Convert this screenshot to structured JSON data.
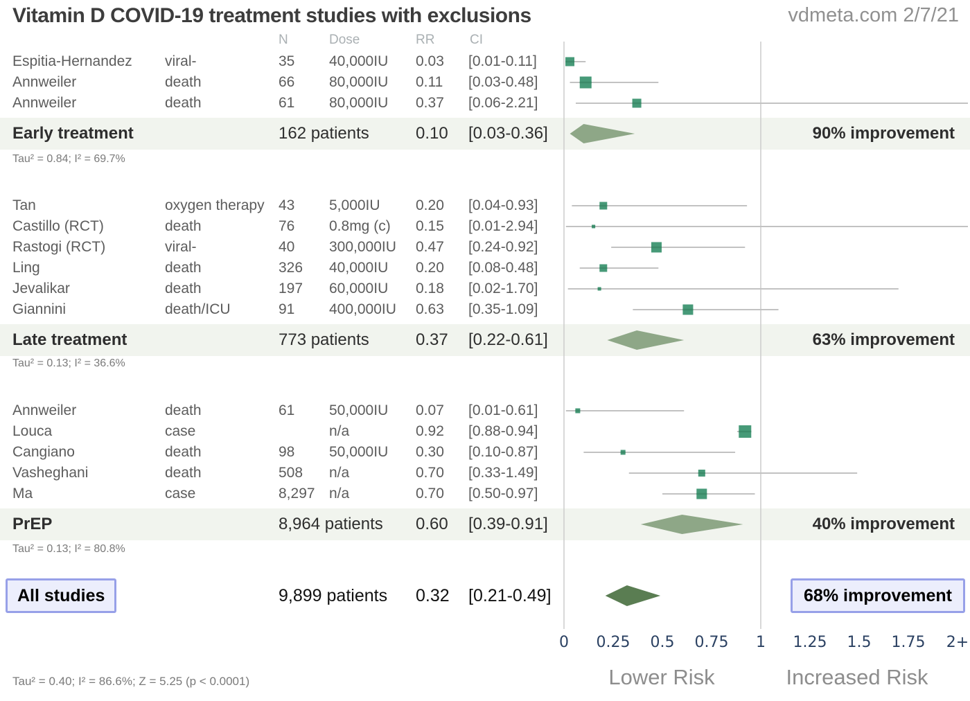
{
  "header": {
    "title": "Vitamin D COVID-19 treatment studies with exclusions",
    "source": "vdmeta.com 2/7/21"
  },
  "colors": {
    "marker": "#479a78",
    "marker_stripe": "#3c8a69",
    "ci_line": "#c2c2c2",
    "gridline": "#cccccc",
    "diamond_group": "#8ea787",
    "diamond_overall": "#5a7d52",
    "summary_band": "#f1f4ee",
    "highlight_border": "#97a0e8",
    "highlight_fill": "#eceefc",
    "tick_label": "#2b4162"
  },
  "chart_data": {
    "type": "forest",
    "title": "Vitamin D COVID-19 treatment studies with exclusions",
    "source": "vdmeta.com 2/7/21",
    "columns": {
      "n": "N",
      "dose": "Dose",
      "rr": "RR",
      "ci": "CI"
    },
    "axis": {
      "ticks": [
        "0",
        "0.25",
        "0.5",
        "0.75",
        "1",
        "1.25",
        "1.5",
        "1.75",
        "2+"
      ],
      "tick_values": [
        0,
        0.25,
        0.5,
        0.75,
        1,
        1.25,
        1.5,
        1.75,
        2
      ],
      "gridlines_at": [
        0,
        1
      ],
      "label_left": "Lower Risk",
      "label_right": "Increased Risk",
      "xlim": [
        0,
        2
      ]
    },
    "groups": [
      {
        "name": "Early treatment",
        "patients": "162 patients",
        "rr": "0.10",
        "ci": "[0.03-0.36]",
        "rr_value": 0.1,
        "ci_low": 0.03,
        "ci_high": 0.36,
        "improvement": "90% improvement",
        "heterogeneity": "Tau² = 0.84; I² = 69.7%",
        "studies": [
          {
            "name": "Espitia-Hernandez",
            "outcome": "viral-",
            "n": "35",
            "dose": "40,000IU",
            "rr": "0.03",
            "ci": "[0.01-0.11]",
            "rr_value": 0.03,
            "ci_low": 0.01,
            "ci_high": 0.11,
            "w": 13
          },
          {
            "name": "Annweiler",
            "outcome": "death",
            "n": "66",
            "dose": "80,000IU",
            "rr": "0.11",
            "ci": "[0.03-0.48]",
            "rr_value": 0.11,
            "ci_low": 0.03,
            "ci_high": 0.48,
            "w": 17
          },
          {
            "name": "Annweiler",
            "outcome": "death",
            "n": "61",
            "dose": "80,000IU",
            "rr": "0.37",
            "ci": "[0.06-2.21]",
            "rr_value": 0.37,
            "ci_low": 0.06,
            "ci_high": 2.21,
            "w": 13
          }
        ]
      },
      {
        "name": "Late treatment",
        "patients": "773 patients",
        "rr": "0.37",
        "ci": "[0.22-0.61]",
        "rr_value": 0.37,
        "ci_low": 0.22,
        "ci_high": 0.61,
        "improvement": "63% improvement",
        "heterogeneity": "Tau² = 0.13; I² = 36.6%",
        "studies": [
          {
            "name": "Tan",
            "outcome": "oxygen therapy",
            "n": "43",
            "dose": "5,000IU",
            "rr": "0.20",
            "ci": "[0.04-0.93]",
            "rr_value": 0.2,
            "ci_low": 0.04,
            "ci_high": 0.93,
            "w": 11
          },
          {
            "name": "Castillo (RCT)",
            "outcome": "death",
            "n": "76",
            "dose": "0.8mg (c)",
            "rr": "0.15",
            "ci": "[0.01-2.94]",
            "rr_value": 0.15,
            "ci_low": 0.01,
            "ci_high": 2.94,
            "w": 5
          },
          {
            "name": "Rastogi (RCT)",
            "outcome": "viral-",
            "n": "40",
            "dose": "300,000IU",
            "rr": "0.47",
            "ci": "[0.24-0.92]",
            "rr_value": 0.47,
            "ci_low": 0.24,
            "ci_high": 0.92,
            "w": 15
          },
          {
            "name": "Ling",
            "outcome": "death",
            "n": "326",
            "dose": "40,000IU",
            "rr": "0.20",
            "ci": "[0.08-0.48]",
            "rr_value": 0.2,
            "ci_low": 0.08,
            "ci_high": 0.48,
            "w": 11
          },
          {
            "name": "Jevalikar",
            "outcome": "death",
            "n": "197",
            "dose": "60,000IU",
            "rr": "0.18",
            "ci": "[0.02-1.70]",
            "rr_value": 0.18,
            "ci_low": 0.02,
            "ci_high": 1.7,
            "w": 5
          },
          {
            "name": "Giannini",
            "outcome": "death/ICU",
            "n": "91",
            "dose": "400,000IU",
            "rr": "0.63",
            "ci": "[0.35-1.09]",
            "rr_value": 0.63,
            "ci_low": 0.35,
            "ci_high": 1.09,
            "w": 15
          }
        ]
      },
      {
        "name": "PrEP",
        "patients": "8,964 patients",
        "rr": "0.60",
        "ci": "[0.39-0.91]",
        "rr_value": 0.6,
        "ci_low": 0.39,
        "ci_high": 0.91,
        "improvement": "40% improvement",
        "heterogeneity": "Tau² = 0.13; I² = 80.8%",
        "studies": [
          {
            "name": "Annweiler",
            "outcome": "death",
            "n": "61",
            "dose": "50,000IU",
            "rr": "0.07",
            "ci": "[0.01-0.61]",
            "rr_value": 0.07,
            "ci_low": 0.01,
            "ci_high": 0.61,
            "w": 7
          },
          {
            "name": "Louca",
            "outcome": "case",
            "n": "",
            "dose": "n/a",
            "rr": "0.92",
            "ci": "[0.88-0.94]",
            "rr_value": 0.92,
            "ci_low": 0.88,
            "ci_high": 0.94,
            "w": 18
          },
          {
            "name": "Cangiano",
            "outcome": "death",
            "n": "98",
            "dose": "50,000IU",
            "rr": "0.30",
            "ci": "[0.10-0.87]",
            "rr_value": 0.3,
            "ci_low": 0.1,
            "ci_high": 0.87,
            "w": 7
          },
          {
            "name": "Vasheghani",
            "outcome": "death",
            "n": "508",
            "dose": "n/a",
            "rr": "0.70",
            "ci": "[0.33-1.49]",
            "rr_value": 0.7,
            "ci_low": 0.33,
            "ci_high": 1.49,
            "w": 10
          },
          {
            "name": "Ma",
            "outcome": "case",
            "n": "8,297",
            "dose": "n/a",
            "rr": "0.70",
            "ci": "[0.50-0.97]",
            "rr_value": 0.7,
            "ci_low": 0.5,
            "ci_high": 0.97,
            "w": 15
          }
        ]
      }
    ],
    "overall": {
      "name": "All studies",
      "patients": "9,899 patients",
      "rr": "0.32",
      "ci": "[0.21-0.49]",
      "rr_value": 0.32,
      "ci_low": 0.21,
      "ci_high": 0.49,
      "improvement": "68% improvement",
      "stats": "Tau² = 0.40; I² = 86.6%; Z = 5.25 (p < 0.0001)"
    }
  }
}
